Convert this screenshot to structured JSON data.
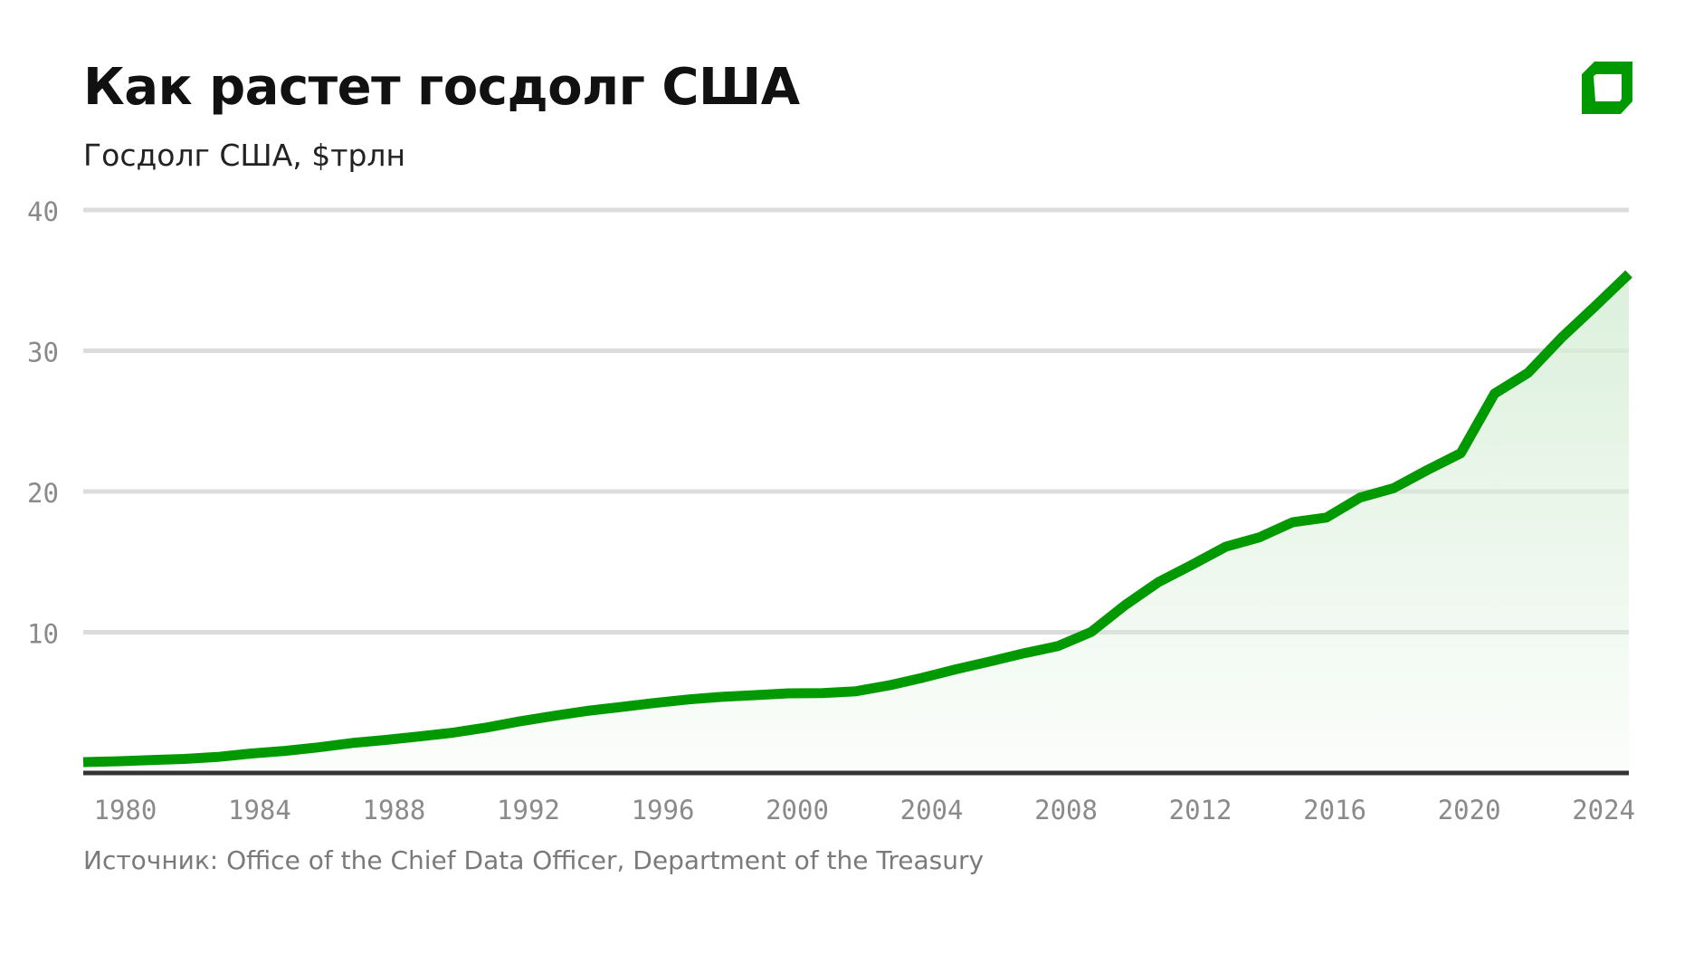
{
  "header": {
    "title": "Как растет госдолг США",
    "subtitle": "Госдолг США, $трлн",
    "logo_icon": "green-square-logo-icon"
  },
  "footer": {
    "source": "Источник: Office of the Chief Data Officer, Department of the Treasury"
  },
  "colors": {
    "line": "#009a00",
    "area_fill": "#e2f2e2",
    "grid": "#dcdcdc",
    "baseline": "#333333",
    "logo": "#009a00"
  },
  "chart_data": {
    "type": "area",
    "title": "Как растет госдолг США",
    "ylabel": "",
    "xlabel": "",
    "ylim": [
      0,
      40
    ],
    "grid": true,
    "y_ticks": [
      "10",
      "20",
      "30",
      "40"
    ],
    "x_ticks": [
      "1980",
      "1984",
      "1988",
      "1992",
      "1996",
      "2000",
      "2004",
      "2008",
      "2012",
      "2016",
      "2020",
      "2024"
    ],
    "x": [
      1978,
      1979,
      1980,
      1981,
      1982,
      1983,
      1984,
      1985,
      1986,
      1987,
      1988,
      1989,
      1990,
      1991,
      1992,
      1993,
      1994,
      1995,
      1996,
      1997,
      1998,
      1999,
      2000,
      2001,
      2002,
      2003,
      2004,
      2005,
      2006,
      2007,
      2008,
      2009,
      2010,
      2011,
      2012,
      2013,
      2014,
      2015,
      2016,
      2017,
      2018,
      2019,
      2020,
      2021,
      2022,
      2023,
      2024
    ],
    "values": [
      0.77,
      0.83,
      0.91,
      1.0,
      1.14,
      1.38,
      1.57,
      1.82,
      2.13,
      2.35,
      2.6,
      2.86,
      3.23,
      3.67,
      4.06,
      4.41,
      4.69,
      4.97,
      5.22,
      5.41,
      5.53,
      5.66,
      5.67,
      5.81,
      6.23,
      6.78,
      7.38,
      7.93,
      8.51,
      9.01,
      10.02,
      11.91,
      13.56,
      14.79,
      16.07,
      16.74,
      17.82,
      18.15,
      19.57,
      20.24,
      21.52,
      22.72,
      26.95,
      28.43,
      30.93,
      33.17,
      35.46
    ]
  }
}
